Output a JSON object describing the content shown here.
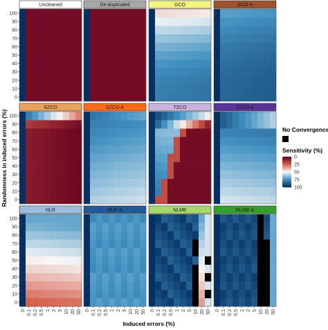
{
  "chart_data": {
    "type": "heatmap",
    "xlabel": "Induced errors (%)",
    "ylabel": "Randomness in induced errors (%)",
    "x_ticks": [
      "0",
      "0.1",
      "0.2",
      "0.5",
      "1",
      "2",
      "5",
      "10",
      "20",
      "50"
    ],
    "y_ticks": [
      "0",
      "10",
      "20",
      "30",
      "40",
      "50",
      "60",
      "70",
      "80",
      "90",
      "100"
    ],
    "legend": {
      "title": "Sensitivity (%)",
      "ticks": [
        "0",
        "25",
        "50",
        "75",
        "100"
      ],
      "colors": [
        "#67001f",
        "#d6604d",
        "#f7f7f7",
        "#4393c3",
        "#053061"
      ],
      "no_convergence_label": "No Convergence",
      "no_convergence_color": "#000000",
      "position": "right"
    },
    "panel_labels": [
      "Uncleaned",
      "De-duplicated",
      "GCO",
      "GCO-A",
      "SZCO",
      "SZCO-A",
      "TZCO",
      "TZCO-A",
      "NLR",
      "NLR-A",
      "NLME",
      "NLME-A"
    ],
    "panel_colors": [
      "#ffffff",
      "#a8a8a8",
      "#f5f57e",
      "#a0522d",
      "#e8a25c",
      "#ff6a1a",
      "#c9b3dc",
      "#5b3398",
      "#9bbcdc",
      "#1f5a9e",
      "#a6d96a",
      "#33a02c"
    ],
    "panels": [
      {
        "label": "Uncleaned",
        "model": "const",
        "sens": 3
      },
      {
        "label": "De-duplicated",
        "model": "const",
        "sens": 3
      },
      {
        "label": "GCO",
        "model": "gco",
        "sens_top": 45,
        "sens_bottom": 80
      },
      {
        "label": "GCO-A",
        "model": "gco",
        "sens_top": 72,
        "sens_bottom": 86
      },
      {
        "label": "SZCO",
        "model": "szco"
      },
      {
        "label": "SZCO-A",
        "model": "szcoa"
      },
      {
        "label": "TZCO",
        "model": "tzco"
      },
      {
        "label": "TZCO-A",
        "model": "tzcoa"
      },
      {
        "label": "NLR",
        "model": "nlr"
      },
      {
        "label": "NLR-A",
        "model": "nlra"
      },
      {
        "label": "NLME",
        "model": "nlme"
      },
      {
        "label": "NLME-A",
        "model": "nlmea"
      }
    ]
  }
}
